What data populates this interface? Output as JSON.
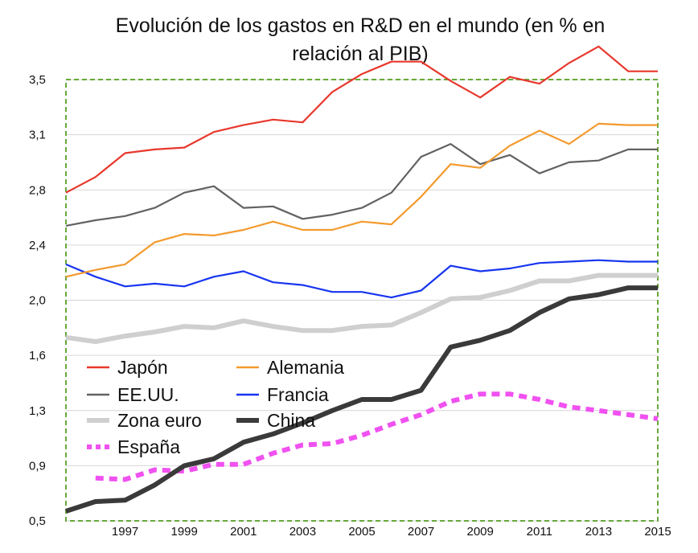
{
  "chart_data": {
    "type": "line",
    "title": "Evolución de los gastos en R&D en el mundo (en % en relación al PIB)",
    "title_lines": [
      "Evolución de los gastos en R&D en el mundo (en % en",
      "relación al PIB)"
    ],
    "xlabel": "",
    "ylabel": "",
    "xlim": [
      1995,
      2015
    ],
    "y_ticks": [
      {
        "value": 0.5,
        "label": "0,5"
      },
      {
        "value": 0.9,
        "label": "0,9"
      },
      {
        "value": 1.3,
        "label": "1,3"
      },
      {
        "value": 1.6,
        "label": "1,6"
      },
      {
        "value": 2.0,
        "label": "2,0"
      },
      {
        "value": 2.4,
        "label": "2,4"
      },
      {
        "value": 2.8,
        "label": "2,8"
      },
      {
        "value": 3.1,
        "label": "3,1"
      },
      {
        "value": 3.5,
        "label": "3,5"
      }
    ],
    "x_ticks": [
      1997,
      1999,
      2001,
      2003,
      2005,
      2007,
      2009,
      2011,
      2013,
      2015
    ],
    "x": [
      1995,
      1996,
      1997,
      1998,
      1999,
      2000,
      2001,
      2002,
      2003,
      2004,
      2005,
      2006,
      2007,
      2008,
      2009,
      2010,
      2011,
      2012,
      2013,
      2014,
      2015
    ],
    "grid": true,
    "legend_position": "bottom-left",
    "series": [
      {
        "name": "Japón",
        "color": "#e8372c",
        "style": "solid",
        "width": "thin",
        "values": [
          2.78,
          2.87,
          3.0,
          3.02,
          3.03,
          3.12,
          3.17,
          3.21,
          3.19,
          3.41,
          3.54,
          3.63,
          3.63,
          3.49,
          3.37,
          3.52,
          3.47,
          3.62,
          3.74,
          3.56,
          3.56
        ]
      },
      {
        "name": "Alemania",
        "color": "#f39a2d",
        "style": "solid",
        "width": "thin",
        "values": [
          2.17,
          2.22,
          2.26,
          2.42,
          2.48,
          2.47,
          2.51,
          2.57,
          2.51,
          2.51,
          2.57,
          2.55,
          2.75,
          2.94,
          2.92,
          3.04,
          3.13,
          3.05,
          3.18,
          3.17,
          3.17
        ]
      },
      {
        "name": "EE.UU.",
        "color": "#626262",
        "style": "solid",
        "width": "thin",
        "values": [
          2.54,
          2.58,
          2.61,
          2.67,
          2.78,
          2.82,
          2.67,
          2.68,
          2.59,
          2.62,
          2.67,
          2.78,
          2.98,
          3.05,
          2.94,
          2.99,
          2.89,
          2.95,
          2.96,
          3.02,
          3.02
        ]
      },
      {
        "name": "Francia",
        "color": "#1735f0",
        "style": "solid",
        "width": "thin",
        "values": [
          2.26,
          2.17,
          2.1,
          2.12,
          2.1,
          2.17,
          2.21,
          2.13,
          2.11,
          2.06,
          2.06,
          2.02,
          2.07,
          2.25,
          2.21,
          2.23,
          2.27,
          2.28,
          2.29,
          2.28,
          2.28
        ]
      },
      {
        "name": "Zona euro",
        "color": "#cfcfcf",
        "style": "solid",
        "width": "thick",
        "values": [
          1.73,
          1.7,
          1.74,
          1.77,
          1.81,
          1.8,
          1.85,
          1.81,
          1.78,
          1.78,
          1.81,
          1.82,
          1.91,
          2.01,
          2.02,
          2.07,
          2.14,
          2.14,
          2.18,
          2.18,
          2.18
        ]
      },
      {
        "name": "China",
        "color": "#3a3a3a",
        "style": "solid",
        "width": "thick",
        "values": [
          0.57,
          0.64,
          0.65,
          0.76,
          0.9,
          0.95,
          1.07,
          1.13,
          1.21,
          1.3,
          1.36,
          1.36,
          1.41,
          1.66,
          1.71,
          1.78,
          1.91,
          2.01,
          2.04,
          2.09,
          2.09
        ]
      },
      {
        "name": "España",
        "color": "#f051f0",
        "style": "dotted",
        "width": "thick",
        "values": [
          null,
          0.81,
          0.8,
          0.87,
          0.86,
          0.91,
          0.91,
          0.99,
          1.05,
          1.06,
          1.12,
          1.2,
          1.27,
          1.35,
          1.39,
          1.39,
          1.36,
          1.32,
          1.3,
          1.27,
          1.24
        ]
      }
    ],
    "legend_columns": [
      [
        "Japón",
        "EE.UU.",
        "Zona euro",
        "España"
      ],
      [
        "Alemania",
        "Francia",
        "China"
      ]
    ]
  }
}
